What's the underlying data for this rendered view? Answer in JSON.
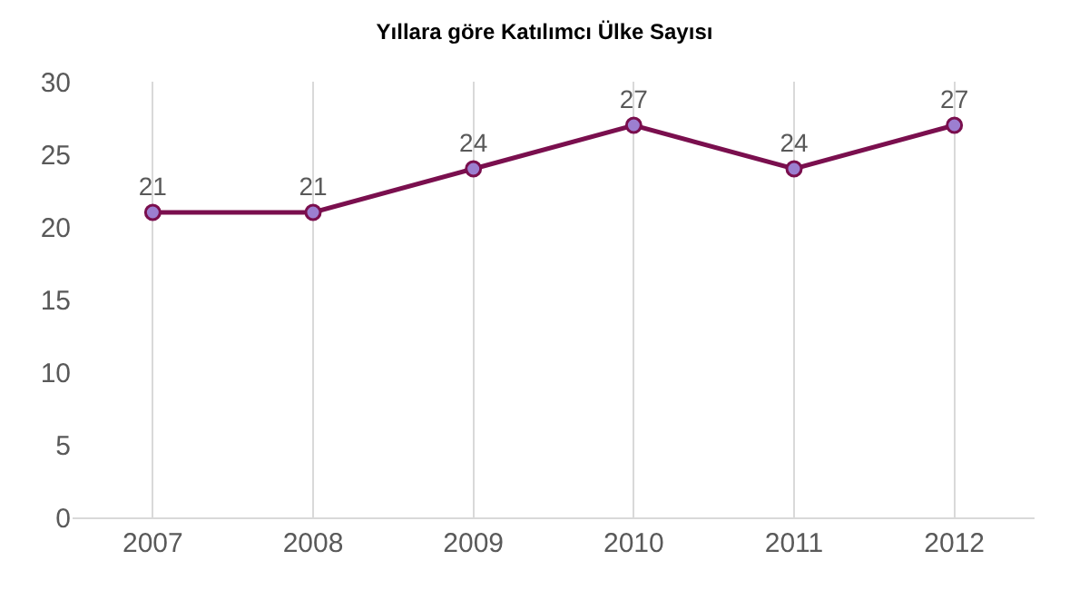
{
  "chart_data": {
    "type": "line",
    "title": "Yıllara göre Katılımcı Ülke Sayısı",
    "categories": [
      "2007",
      "2008",
      "2009",
      "2010",
      "2011",
      "2012"
    ],
    "series": [
      {
        "color": "#7a0f4e",
        "values": [
          21,
          21,
          24,
          27,
          24,
          27
        ]
      }
    ],
    "ylim": [
      0,
      30
    ],
    "yticks": [
      0,
      5,
      10,
      15,
      20,
      25,
      30
    ],
    "grid": "x",
    "marker": "circle",
    "data_labels": true,
    "legend": false
  }
}
